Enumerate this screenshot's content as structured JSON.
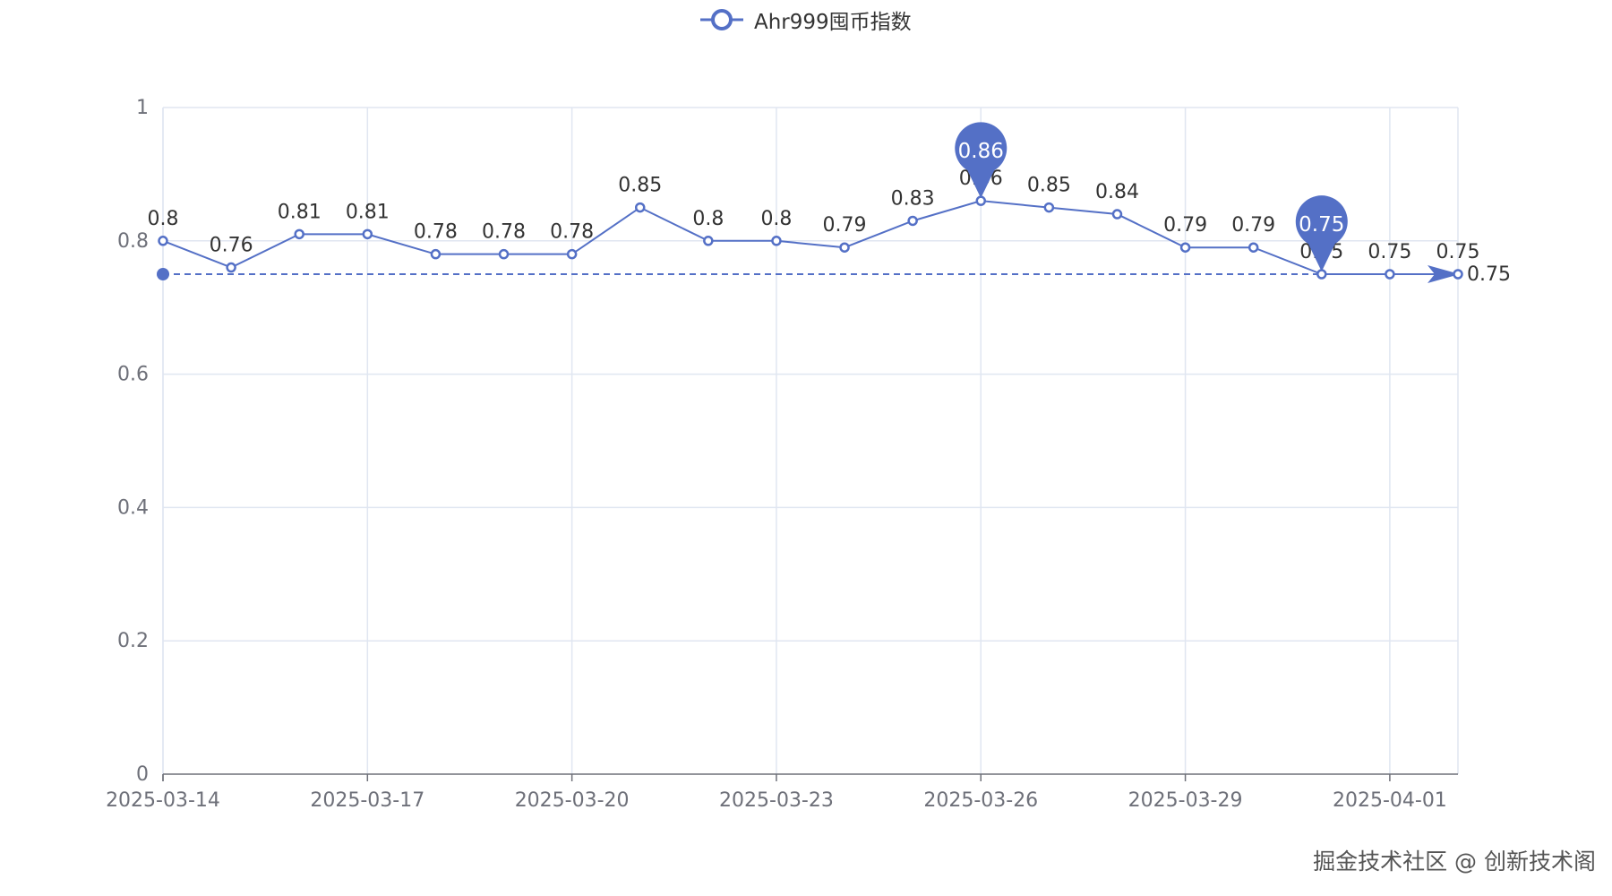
{
  "legend": {
    "label": "Ahr999囤币指数"
  },
  "watermark": "掘金技术社区 @ 创新技术阁",
  "colors": {
    "series": "#5470c6",
    "grid": "#e0e6f1",
    "axis": "#6e7079",
    "label": "#333333"
  },
  "chart_data": {
    "type": "line",
    "title": "",
    "xlabel": "",
    "ylabel": "",
    "ylim": [
      0,
      1
    ],
    "y_ticks": [
      "0",
      "0.2",
      "0.4",
      "0.6",
      "0.8",
      "1"
    ],
    "x": [
      "2025-03-14",
      "2025-03-15",
      "2025-03-16",
      "2025-03-17",
      "2025-03-18",
      "2025-03-19",
      "2025-03-20",
      "2025-03-21",
      "2025-03-22",
      "2025-03-23",
      "2025-03-24",
      "2025-03-25",
      "2025-03-26",
      "2025-03-27",
      "2025-03-28",
      "2025-03-29",
      "2025-03-30",
      "2025-03-31",
      "2025-04-01",
      "2025-04-02"
    ],
    "x_tick_labels": [
      "2025-03-14",
      "2025-03-17",
      "2025-03-20",
      "2025-03-23",
      "2025-03-26",
      "2025-03-29",
      "2025-04-01"
    ],
    "series": [
      {
        "name": "Ahr999囤币指数",
        "values": [
          0.8,
          0.76,
          0.81,
          0.81,
          0.78,
          0.78,
          0.78,
          0.85,
          0.8,
          0.8,
          0.79,
          0.83,
          0.86,
          0.85,
          0.84,
          0.79,
          0.79,
          0.75,
          0.75,
          0.75
        ]
      }
    ],
    "mark_points": [
      {
        "type": "max",
        "x": "2025-03-26",
        "value": 0.86,
        "label": "0.86"
      },
      {
        "type": "min",
        "x": "2025-03-31",
        "value": 0.75,
        "label": "0.75"
      }
    ],
    "mark_line": {
      "type": "last-value",
      "value": 0.75,
      "label": "0.75",
      "style": "dashed",
      "end_symbol": "arrow"
    },
    "legend_position": "top-center",
    "grid": true
  }
}
